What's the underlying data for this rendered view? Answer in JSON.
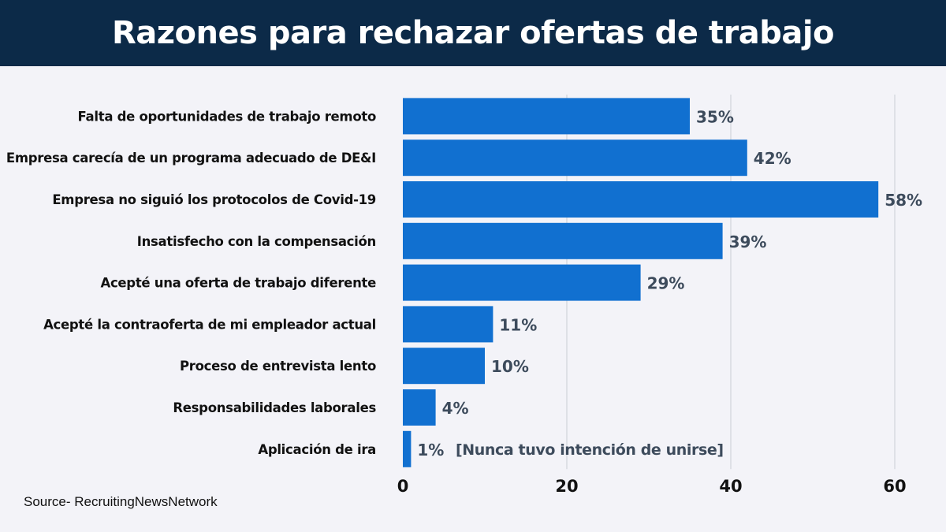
{
  "header": {
    "title": "Razones para rechazar ofertas de trabajo"
  },
  "source": "Source- RecruitingNewsNetwork",
  "colors": {
    "header": "#0c2a48",
    "bar": "#1170d0",
    "background": "#f3f3f8",
    "value_label": "#3d4b5c"
  },
  "chart_data": {
    "type": "bar",
    "orientation": "horizontal",
    "title": "Razones para rechazar ofertas de trabajo",
    "categories": [
      "Falta de oportunidades de trabajo remoto",
      "Empresa carecía de un programa adecuado de DE&I",
      "Empresa no siguió los protocolos de Covid-19",
      "Insatisfecho con la compensación",
      "Acepté una oferta de trabajo diferente",
      "Acepté la contraoferta de mi empleador actual",
      "Proceso de entrevista lento",
      "Responsabilidades laborales",
      "Aplicación de ira"
    ],
    "values": [
      35,
      42,
      58,
      39,
      29,
      11,
      10,
      4,
      1
    ],
    "data_labels": [
      "35%",
      "42%",
      "58%",
      "39%",
      "29%",
      "11%",
      "10%",
      "4%",
      "1%"
    ],
    "annotations": [
      {
        "category": "Aplicación de ira",
        "text": "[Nunca tuvo intención de unirse]"
      }
    ],
    "xlim": [
      0,
      60
    ],
    "xticks": [
      "0",
      "20",
      "40",
      "60"
    ],
    "grid": "vertical",
    "xlabel": "",
    "ylabel": ""
  }
}
